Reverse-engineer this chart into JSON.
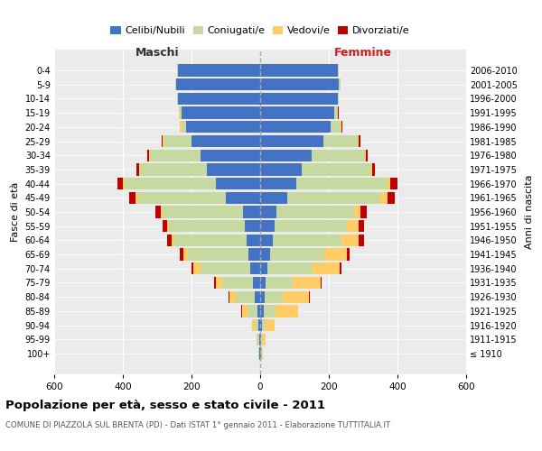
{
  "age_groups": [
    "0-4",
    "5-9",
    "10-14",
    "15-19",
    "20-24",
    "25-29",
    "30-34",
    "35-39",
    "40-44",
    "45-49",
    "50-54",
    "55-59",
    "60-64",
    "65-69",
    "70-74",
    "75-79",
    "80-84",
    "85-89",
    "90-94",
    "95-99",
    "100+"
  ],
  "birth_years": [
    "2006-2010",
    "2001-2005",
    "1996-2000",
    "1991-1995",
    "1986-1990",
    "1981-1985",
    "1976-1980",
    "1971-1975",
    "1966-1970",
    "1961-1965",
    "1956-1960",
    "1951-1955",
    "1946-1950",
    "1941-1945",
    "1936-1940",
    "1931-1935",
    "1926-1930",
    "1921-1925",
    "1916-1920",
    "1911-1915",
    "≤ 1910"
  ],
  "males": {
    "celibi": [
      240,
      245,
      240,
      230,
      215,
      200,
      175,
      155,
      130,
      100,
      50,
      45,
      40,
      35,
      30,
      20,
      15,
      8,
      5,
      3,
      2
    ],
    "coniugati": [
      2,
      2,
      2,
      5,
      15,
      80,
      145,
      195,
      265,
      255,
      235,
      220,
      210,
      175,
      145,
      90,
      55,
      30,
      10,
      4,
      2
    ],
    "vedovi": [
      1,
      1,
      1,
      2,
      3,
      3,
      3,
      3,
      5,
      8,
      5,
      6,
      8,
      15,
      20,
      20,
      20,
      15,
      8,
      3,
      1
    ],
    "divorziati": [
      0,
      0,
      0,
      1,
      2,
      3,
      5,
      8,
      15,
      18,
      15,
      12,
      12,
      8,
      5,
      3,
      2,
      1,
      0,
      0,
      0
    ]
  },
  "females": {
    "nubili": [
      225,
      230,
      225,
      215,
      205,
      185,
      150,
      120,
      105,
      80,
      48,
      42,
      38,
      28,
      22,
      15,
      12,
      10,
      5,
      3,
      2
    ],
    "coniugate": [
      3,
      3,
      3,
      10,
      30,
      100,
      155,
      200,
      265,
      270,
      225,
      210,
      200,
      160,
      130,
      80,
      55,
      35,
      12,
      4,
      2
    ],
    "vedove": [
      1,
      1,
      1,
      2,
      3,
      3,
      3,
      5,
      10,
      20,
      20,
      35,
      50,
      65,
      80,
      80,
      75,
      65,
      25,
      8,
      3
    ],
    "divorziate": [
      0,
      0,
      0,
      1,
      2,
      3,
      5,
      10,
      20,
      22,
      18,
      15,
      15,
      8,
      5,
      4,
      3,
      1,
      0,
      0,
      0
    ]
  },
  "colors": {
    "celibi": "#4472C4",
    "coniugati": "#C5D9A0",
    "vedovi": "#FFCC66",
    "divorziati": "#C00000"
  },
  "title": "Popolazione per età, sesso e stato civile - 2011",
  "subtitle": "COMUNE DI PIAZZOLA SUL BRENTA (PD) - Dati ISTAT 1° gennaio 2011 - Elaborazione TUTTITALIA.IT",
  "xlabel_left": "Maschi",
  "xlabel_right": "Femmine",
  "ylabel_left": "Fasce di età",
  "ylabel_right": "Anni di nascita",
  "xlim": 600,
  "legend_labels": [
    "Celibi/Nubili",
    "Coniugati/e",
    "Vedovi/e",
    "Divorziati/e"
  ],
  "bg_color": "#ffffff",
  "plot_bg": "#ebebeb",
  "grid_color": "#ffffff"
}
